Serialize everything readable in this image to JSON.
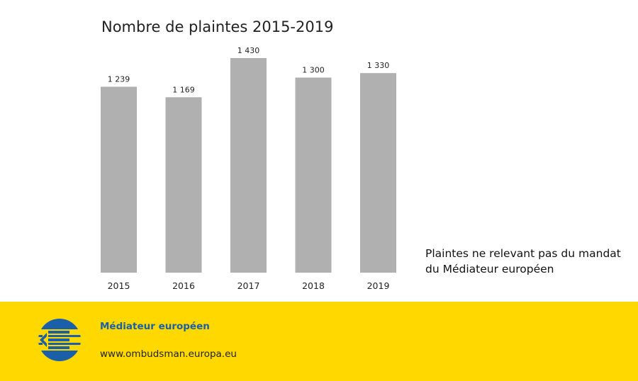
{
  "colors": {
    "bar": "#b0b0b0",
    "footer_bg": "#ffd800",
    "logo_blue": "#1a5fa8",
    "logo_yellow": "#ffd800"
  },
  "chart_data": {
    "type": "bar",
    "title": "Nombre de plaintes 2015-2019",
    "categories": [
      "2015",
      "2016",
      "2017",
      "2018",
      "2019"
    ],
    "values": [
      1239,
      1169,
      1430,
      1300,
      1330
    ],
    "value_labels": [
      "1 239",
      "1 169",
      "1 430",
      "1 300",
      "1 330"
    ],
    "series": [
      {
        "name": "Plaintes ne relevant pas du mandat du Médiateur européen",
        "values": [
          1239,
          1169,
          1430,
          1300,
          1330
        ]
      }
    ],
    "ylim": [
      0,
      1430
    ],
    "grid": false,
    "legend_placement": "bottom-right"
  },
  "legend": {
    "line1": "Plaintes ne relevant pas du mandat",
    "line2": "du Médiateur européen"
  },
  "footer": {
    "name": "Médiateur européen",
    "url": "www.ombudsman.europa.eu",
    "logo_icon": "european-ombudsman-logo-icon"
  }
}
